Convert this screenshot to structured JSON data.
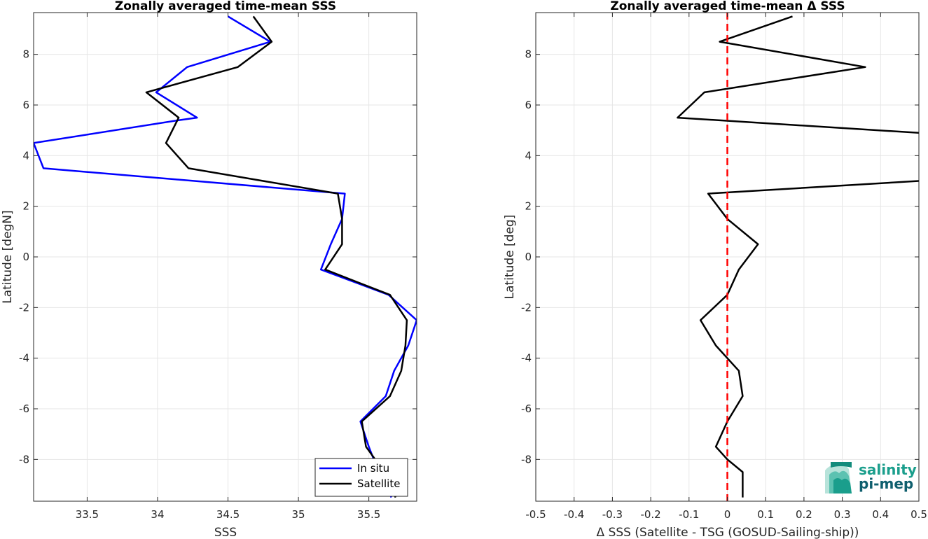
{
  "chart_data": [
    {
      "type": "line",
      "title": "Zonally averaged time-mean SSS",
      "xlabel": "SSS",
      "ylabel": "Latitude [degN]",
      "xlim": [
        33.12,
        35.84
      ],
      "ylim": [
        -9.65,
        9.65
      ],
      "xticks": [
        33.5,
        34,
        34.5,
        35,
        35.5
      ],
      "xtick_labels": [
        "33.5",
        "34",
        "34.5",
        "35",
        "35.5"
      ],
      "yticks": [
        -8,
        -6,
        -4,
        -2,
        0,
        2,
        4,
        6,
        8
      ],
      "ytick_labels": [
        "-8",
        "-6",
        "-4",
        "-2",
        "0",
        "2",
        "4",
        "6",
        "8"
      ],
      "grid": true,
      "legend": "bottom-right",
      "series": [
        {
          "name": "In situ",
          "color": "#0000ff",
          "points": [
            [
              34.5,
              9.5
            ],
            [
              34.8,
              8.5
            ],
            [
              34.21,
              7.5
            ],
            [
              33.99,
              6.5
            ],
            [
              34.28,
              5.5
            ],
            [
              34.15,
              5.4
            ],
            [
              33.12,
              4.5
            ],
            [
              33.19,
              3.5
            ],
            [
              35.33,
              2.5
            ],
            [
              35.31,
              1.5
            ],
            [
              35.23,
              0.5
            ],
            [
              35.16,
              -0.5
            ],
            [
              35.64,
              -1.5
            ],
            [
              35.84,
              -2.5
            ],
            [
              35.78,
              -3.5
            ],
            [
              35.68,
              -4.5
            ],
            [
              35.62,
              -5.5
            ],
            [
              35.44,
              -6.5
            ],
            [
              35.5,
              -7.5
            ],
            [
              35.57,
              -8.5
            ],
            [
              35.66,
              -9.5
            ]
          ]
        },
        {
          "name": "Satellite",
          "color": "#000000",
          "points": [
            [
              34.68,
              9.5
            ],
            [
              34.81,
              8.5
            ],
            [
              34.57,
              7.5
            ],
            [
              33.92,
              6.5
            ],
            [
              34.15,
              5.5
            ],
            [
              34.06,
              4.5
            ],
            [
              34.22,
              3.5
            ],
            [
              35.28,
              2.5
            ],
            [
              35.31,
              1.5
            ],
            [
              35.31,
              0.5
            ],
            [
              35.19,
              -0.5
            ],
            [
              35.65,
              -1.5
            ],
            [
              35.77,
              -2.5
            ],
            [
              35.76,
              -3.5
            ],
            [
              35.73,
              -4.5
            ],
            [
              35.65,
              -5.5
            ],
            [
              35.45,
              -6.5
            ],
            [
              35.48,
              -7.5
            ],
            [
              35.61,
              -8.5
            ],
            [
              35.69,
              -9.5
            ]
          ]
        }
      ]
    },
    {
      "type": "line",
      "title": "Zonally averaged time-mean Δ SSS",
      "xlabel": "Δ SSS (Satellite - TSG (GOSUD-Sailing-ship))",
      "ylabel": "Latitude [deg]",
      "xlim": [
        -0.5,
        0.5
      ],
      "ylim": [
        -9.65,
        9.65
      ],
      "xticks": [
        -0.5,
        -0.4,
        -0.3,
        -0.2,
        -0.1,
        0,
        0.1,
        0.2,
        0.3,
        0.4,
        0.5
      ],
      "xtick_labels": [
        "-0.5",
        "-0.4",
        "-0.3",
        "-0.2",
        "-0.1",
        "0",
        "0.1",
        "0.2",
        "0.3",
        "0.4",
        "0.5"
      ],
      "yticks": [
        -8,
        -6,
        -4,
        -2,
        0,
        2,
        4,
        6,
        8
      ],
      "ytick_labels": [
        "-8",
        "-6",
        "-4",
        "-2",
        "0",
        "2",
        "4",
        "6",
        "8"
      ],
      "grid": true,
      "series": [
        {
          "name": "",
          "color": "#000000",
          "points": [
            [
              0.17,
              9.5
            ],
            [
              -0.02,
              8.5
            ],
            [
              0.36,
              7.5
            ],
            [
              -0.06,
              6.5
            ],
            [
              -0.13,
              5.5
            ],
            [
              0.5,
              4.9
            ],
            [
              0.52,
              4.5
            ],
            [
              0.52,
              3.5
            ],
            [
              0.5,
              3.0
            ],
            [
              -0.05,
              2.5
            ],
            [
              0.0,
              1.5
            ],
            [
              0.08,
              0.5
            ],
            [
              0.03,
              -0.5
            ],
            [
              0.0,
              -1.5
            ],
            [
              -0.07,
              -2.5
            ],
            [
              -0.03,
              -3.5
            ],
            [
              0.0,
              -4.0
            ],
            [
              0.03,
              -4.5
            ],
            [
              0.04,
              -5.5
            ],
            [
              0.0,
              -6.5
            ],
            [
              -0.03,
              -7.5
            ],
            [
              0.0,
              -8.0
            ],
            [
              0.04,
              -8.5
            ],
            [
              0.04,
              -9.5
            ]
          ]
        },
        {
          "name": "",
          "color": "#ff0000",
          "dashed": true,
          "points": [
            [
              0,
              -9.65
            ],
            [
              0,
              9.65
            ]
          ]
        }
      ]
    }
  ],
  "logo": {
    "line1": "salinity",
    "line2": "pi-mep"
  }
}
